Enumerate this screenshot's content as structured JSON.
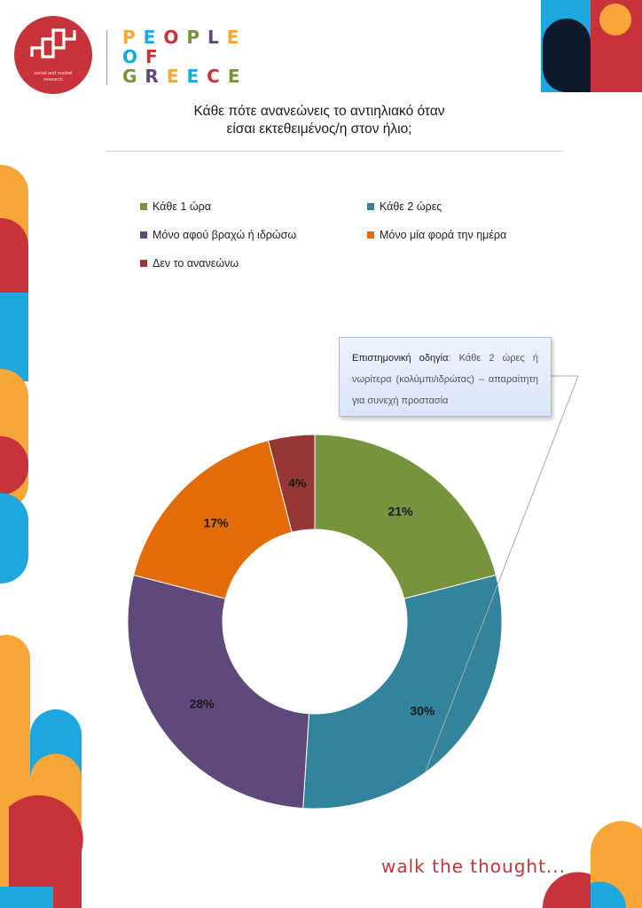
{
  "brand": {
    "logo_subtitle_line1": "social and market",
    "logo_subtitle_line2": "research",
    "name_lines": [
      "PEOPLE",
      "OF",
      "GREECE"
    ]
  },
  "tagline": "walk the thought...",
  "callout": {
    "label": "Επιστημονική οδηγία",
    "separator": ": ",
    "text": "Κάθε 2 ώρες ή νωρίτερα (κολύμπι/ιδρώτας) – απαραίτητη για συνεχή προστασία"
  },
  "chart_data": {
    "type": "pie",
    "donut": true,
    "title": "Κάθε πότε ανανεώνεις το αντιηλιακό όταν είσαι εκτεθειμένος/η στον ήλιο;",
    "title_line1": "Κάθε πότε ανανεώνεις το αντιηλιακό όταν",
    "title_line2": "είσαι εκτεθειμένος/η στον ήλιο;",
    "legend_position": "top",
    "categories": [
      "Κάθε 1 ώρα",
      "Κάθε 2 ώρες",
      "Μόνο αφού βραχώ ή ιδρώσω",
      "Μόνο μία φορά την ημέρα",
      "Δεν το ανανεώνω"
    ],
    "values": [
      21,
      30,
      28,
      17,
      4
    ],
    "labels": [
      "21%",
      "30%",
      "28%",
      "17%",
      "4%"
    ],
    "colors": [
      "#77933c",
      "#31849b",
      "#5f497a",
      "#e36c09",
      "#953735"
    ],
    "highlight_category": "Κάθε 2 ώρες"
  }
}
